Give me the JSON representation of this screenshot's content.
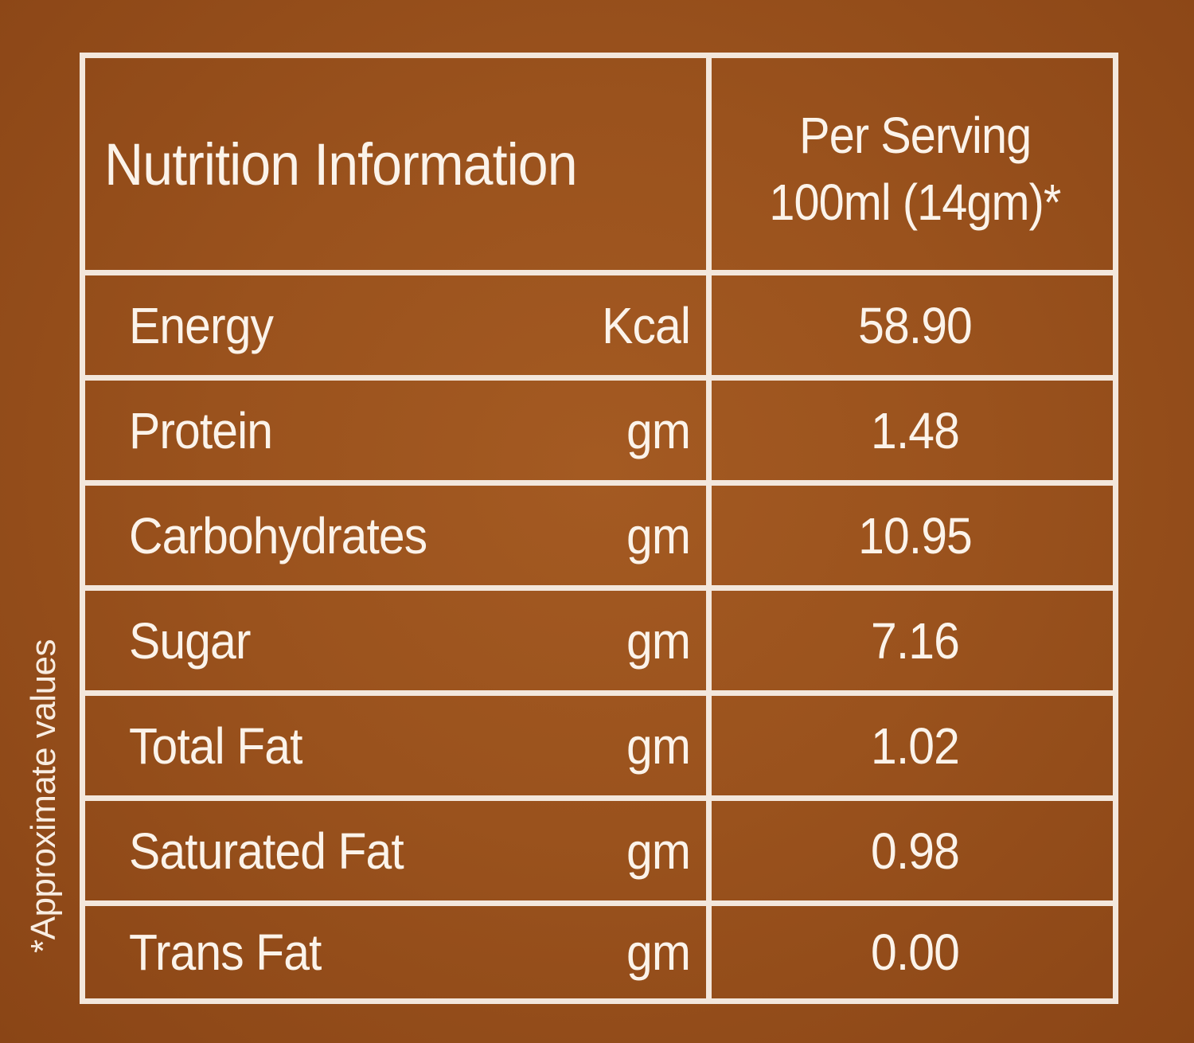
{
  "header": {
    "title": "Nutrition Information",
    "serving_line1": "Per Serving",
    "serving_line2": "100ml (14gm)*"
  },
  "rows": [
    {
      "name": "Energy",
      "unit": "Kcal",
      "value": "58.90"
    },
    {
      "name": "Protein",
      "unit": "gm",
      "value": "1.48"
    },
    {
      "name": "Carbohydrates",
      "unit": "gm",
      "value": "10.95"
    },
    {
      "name": "Sugar",
      "unit": "gm",
      "value": "7.16"
    },
    {
      "name": "Total Fat",
      "unit": "gm",
      "value": "1.02"
    },
    {
      "name": "Saturated Fat",
      "unit": "gm",
      "value": "0.98"
    },
    {
      "name": "Trans Fat",
      "unit": "gm",
      "value": "0.00"
    }
  ],
  "footnote": "*Approximate values",
  "colors": {
    "background": "#9a521d",
    "lines": "#f3e7dc",
    "text": "#fbf3ea"
  }
}
